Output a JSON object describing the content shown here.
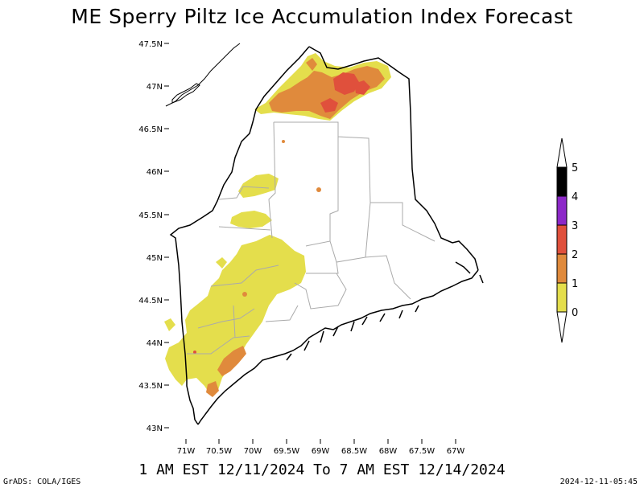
{
  "title": "ME Sperry Piltz Ice Accumulation Index Forecast",
  "subtitle": "1 AM EST 12/11/2024 To 7 AM EST 12/14/2024",
  "credit": "GrADS: COLA/IGES",
  "timestamp": "2024-12-11-05:45",
  "map": {
    "lat_labels": [
      "47.5N",
      "47N",
      "46.5N",
      "46N",
      "45.5N",
      "45N",
      "44.5N",
      "44N",
      "43.5N",
      "43N"
    ],
    "lon_labels": [
      "71W",
      "70.5W",
      "70W",
      "69.5W",
      "69W",
      "68.5W",
      "68W",
      "67.5W",
      "67W"
    ]
  },
  "colorbar": {
    "levels": [
      "0",
      "1",
      "2",
      "3",
      "4",
      "5"
    ],
    "colors": {
      "0-1": "#e4de4c",
      "1-2": "#e08a3c",
      "2-3": "#e0503c",
      "3-4": "#8c28c8",
      "4-5": "#000000"
    }
  }
}
